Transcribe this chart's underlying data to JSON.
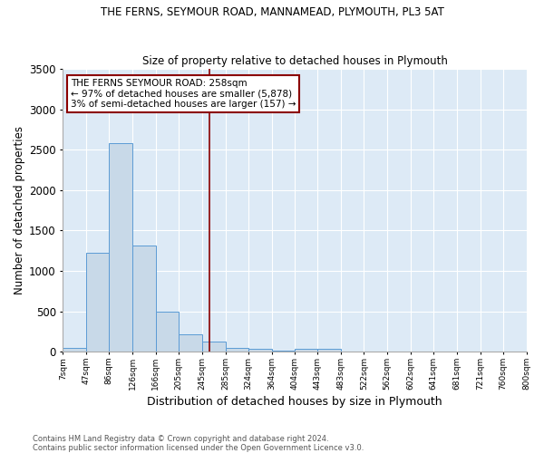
{
  "title1": "THE FERNS, SEYMOUR ROAD, MANNAMEAD, PLYMOUTH, PL3 5AT",
  "title2": "Size of property relative to detached houses in Plymouth",
  "xlabel": "Distribution of detached houses by size in Plymouth",
  "ylabel": "Number of detached properties",
  "footnote1": "Contains HM Land Registry data © Crown copyright and database right 2024.",
  "footnote2": "Contains public sector information licensed under the Open Government Licence v3.0.",
  "annotation_line1": "THE FERNS SEYMOUR ROAD: 258sqm",
  "annotation_line2": "← 97% of detached houses are smaller (5,878)",
  "annotation_line3": "3% of semi-detached houses are larger (157) →",
  "property_sqm": 258,
  "bar_left_edges": [
    7,
    47,
    86,
    126,
    166,
    205,
    245,
    285,
    324,
    364,
    404,
    443,
    483,
    522,
    562,
    602,
    641,
    681,
    721,
    760
  ],
  "bar_right_edges": [
    47,
    86,
    126,
    166,
    205,
    245,
    285,
    324,
    364,
    404,
    443,
    483,
    522,
    562,
    602,
    641,
    681,
    721,
    760,
    800
  ],
  "bar_heights": [
    50,
    1220,
    2580,
    1310,
    490,
    220,
    120,
    50,
    30,
    15,
    40,
    30,
    5,
    2,
    1,
    0,
    0,
    0,
    0,
    0
  ],
  "tick_labels": [
    "7sqm",
    "47sqm",
    "86sqm",
    "126sqm",
    "166sqm",
    "205sqm",
    "245sqm",
    "285sqm",
    "324sqm",
    "364sqm",
    "404sqm",
    "443sqm",
    "483sqm",
    "522sqm",
    "562sqm",
    "602sqm",
    "641sqm",
    "681sqm",
    "721sqm",
    "760sqm",
    "800sqm"
  ],
  "bar_color": "#c8d9e8",
  "bar_edge_color": "#5b9bd5",
  "vline_color": "#8b0000",
  "box_edge_color": "#8b0000",
  "background_color": "#ddeaf6",
  "ylim": [
    0,
    3500
  ],
  "xlim": [
    7,
    800
  ],
  "yticks": [
    0,
    500,
    1000,
    1500,
    2000,
    2500,
    3000,
    3500
  ]
}
